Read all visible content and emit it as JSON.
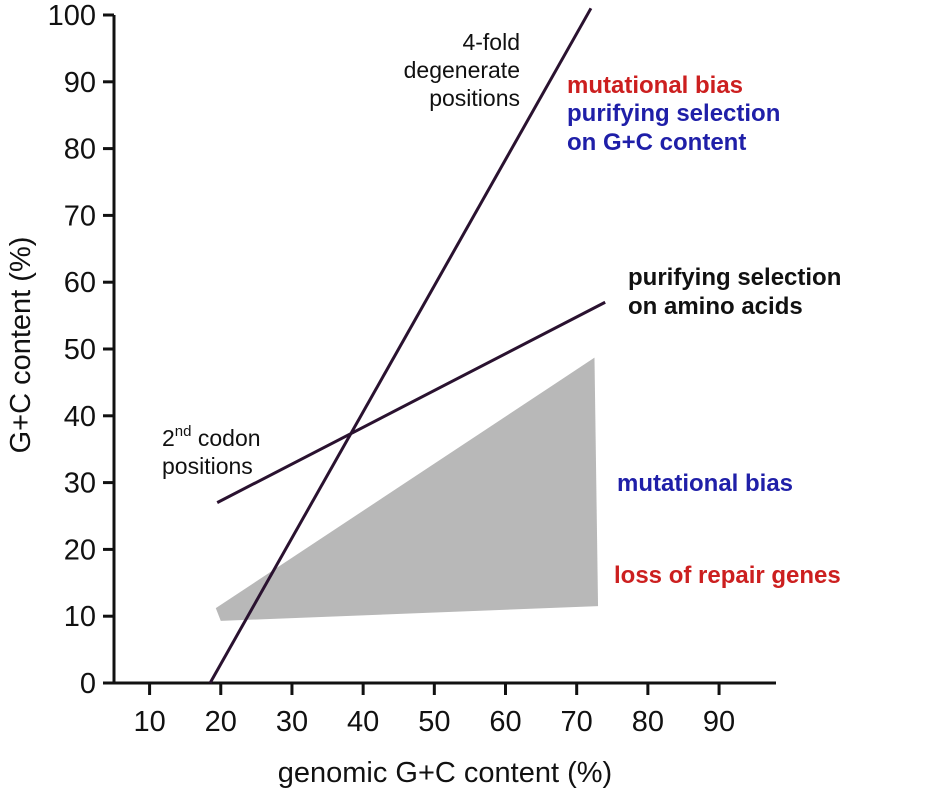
{
  "chart_data": {
    "type": "line",
    "title": "",
    "xlabel": "genomic G+C content (%)",
    "ylabel": "G+C content (%)",
    "xlim": [
      5,
      98
    ],
    "ylim": [
      0,
      100
    ],
    "x_ticks": [
      "10",
      "20",
      "30",
      "40",
      "50",
      "60",
      "70",
      "80",
      "90"
    ],
    "y_ticks": [
      "0",
      "10",
      "20",
      "30",
      "40",
      "50",
      "60",
      "70",
      "80",
      "90",
      "100"
    ],
    "grid": false,
    "series": [
      {
        "name": "4-fold degenerate positions",
        "x": [
          18.5,
          72
        ],
        "y": [
          0,
          101
        ],
        "color": "#2a1230"
      },
      {
        "name": "2nd codon positions",
        "x": [
          19.5,
          74
        ],
        "y": [
          27,
          57
        ],
        "color": "#2a1230"
      }
    ],
    "region": {
      "color": "#b8b8b8",
      "polygon": [
        [
          19.3,
          11.2
        ],
        [
          20,
          9.3
        ],
        [
          73,
          11.5
        ],
        [
          72.5,
          48.7
        ]
      ]
    },
    "annotations": {
      "fourfold": [
        "4-fold",
        "degenerate",
        "positions"
      ],
      "second_main": "2",
      "second_sup": "nd",
      "second_rest": " codon",
      "second_line2": "positions",
      "mutbias_top": {
        "text": "mutational bias",
        "color": "#cc1f1f"
      },
      "purifying_gc_1": {
        "text": "purifying selection",
        "color": "#1f1fa8"
      },
      "purifying_gc_2": {
        "text": "on G+C content",
        "color": "#1f1fa8"
      },
      "purifying_aa_1": {
        "text": "purifying selection",
        "color": "#111111"
      },
      "purifying_aa_2": {
        "text": "on amino acids",
        "color": "#111111"
      },
      "mutbias_low": {
        "text": "mutational bias",
        "color": "#1f1fa8"
      },
      "repair": {
        "text": "loss of repair genes",
        "color": "#cc1f1f"
      }
    }
  }
}
